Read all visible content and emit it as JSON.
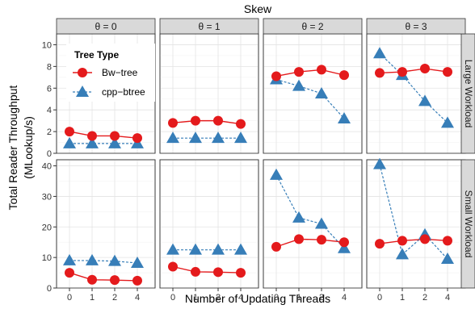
{
  "chart_data": {
    "type": "line",
    "title": "Skew",
    "xlabel": "Number of Updating Threads",
    "ylabel_lines": [
      "Total Reader Throughput",
      "(MLookup/s)"
    ],
    "x_categories": [
      "0",
      "1",
      "2",
      "4"
    ],
    "column_labels": [
      "θ = 0",
      "θ = 1",
      "θ = 2",
      "θ = 3"
    ],
    "row_labels": [
      "Large Workload",
      "Small Workload"
    ],
    "rows": [
      {
        "ylim": [
          0,
          11
        ],
        "yticks": [
          "0",
          "2",
          "4",
          "6",
          "8",
          "10"
        ],
        "ytick_values": [
          0,
          2,
          4,
          6,
          8,
          10
        ]
      },
      {
        "ylim": [
          0,
          42
        ],
        "yticks": [
          "0",
          "10",
          "20",
          "30",
          "40"
        ],
        "ytick_values": [
          0,
          10,
          20,
          30,
          40
        ]
      }
    ],
    "legend": {
      "title": "Tree Type",
      "placement": "top-left (inside first panel)",
      "entries": [
        "Bw−tree",
        "cpp−btree"
      ]
    },
    "series_colors": {
      "Bw-tree": "#e41a1c",
      "cpp-btree": "#377eb8"
    },
    "panels": [
      {
        "row": 0,
        "col": 0,
        "bwtree": [
          2.0,
          1.6,
          1.6,
          1.4
        ],
        "cppbtree": [
          0.9,
          0.9,
          0.9,
          0.9
        ]
      },
      {
        "row": 0,
        "col": 1,
        "bwtree": [
          2.8,
          3.0,
          3.0,
          2.7
        ],
        "cppbtree": [
          1.4,
          1.4,
          1.4,
          1.4
        ]
      },
      {
        "row": 0,
        "col": 2,
        "bwtree": [
          7.1,
          7.5,
          7.7,
          7.2
        ],
        "cppbtree": [
          6.8,
          6.2,
          5.5,
          3.2
        ]
      },
      {
        "row": 0,
        "col": 3,
        "bwtree": [
          7.4,
          7.5,
          7.8,
          7.5
        ],
        "cppbtree": [
          9.2,
          7.2,
          4.8,
          2.8
        ]
      },
      {
        "row": 1,
        "col": 0,
        "bwtree": [
          5.0,
          2.7,
          2.6,
          2.4
        ],
        "cppbtree": [
          9.0,
          9.0,
          8.8,
          8.2
        ]
      },
      {
        "row": 1,
        "col": 1,
        "bwtree": [
          7.0,
          5.3,
          5.2,
          5.0
        ],
        "cppbtree": [
          12.5,
          12.5,
          12.5,
          12.5
        ]
      },
      {
        "row": 1,
        "col": 2,
        "bwtree": [
          13.5,
          16.0,
          15.8,
          15.0
        ],
        "cppbtree": [
          37.0,
          23.0,
          21.0,
          13.0
        ]
      },
      {
        "row": 1,
        "col": 3,
        "bwtree": [
          14.5,
          15.5,
          16.0,
          15.5
        ],
        "cppbtree": [
          40.5,
          11.0,
          17.5,
          9.5
        ]
      }
    ]
  }
}
